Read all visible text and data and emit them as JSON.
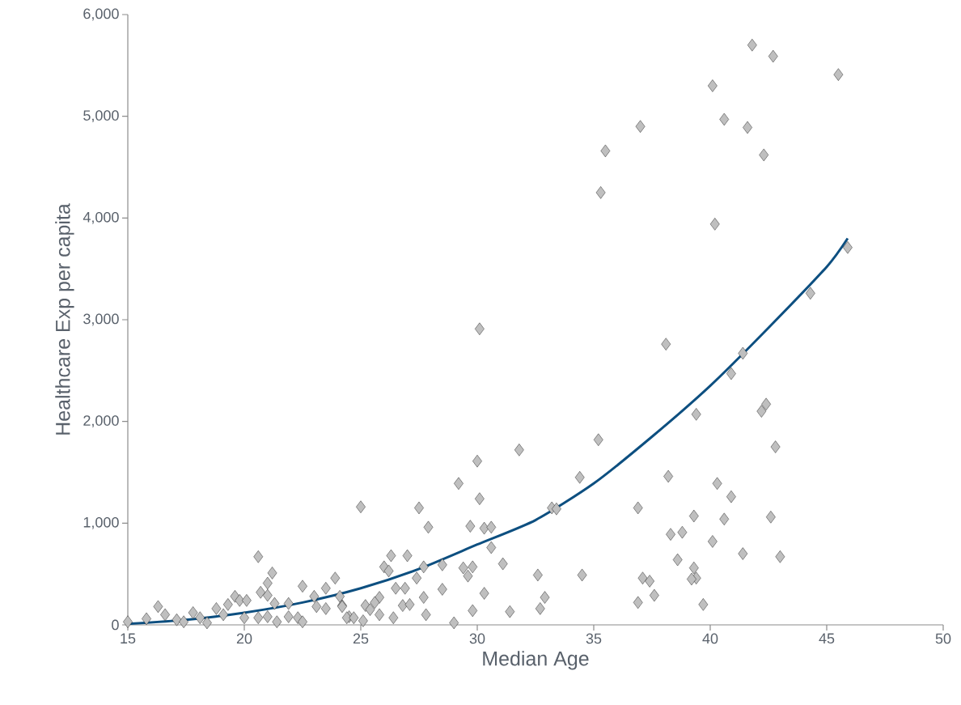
{
  "chart_data": {
    "type": "scatter",
    "xlabel": "Median Age",
    "ylabel": "Healthcare Exp per capita",
    "marker": "diamond",
    "xlim": [
      15,
      50
    ],
    "ylim": [
      0,
      6000
    ],
    "xticks": [
      15,
      20,
      25,
      30,
      35,
      40,
      45,
      50
    ],
    "yticks": [
      0,
      {
        "value": 1000,
        "label": "1,000"
      },
      {
        "value": 2000,
        "label": "2,000"
      },
      {
        "value": 3000,
        "label": "3,000"
      },
      {
        "value": 4000,
        "label": "4,000"
      },
      {
        "value": 5000,
        "label": "5,000"
      },
      {
        "value": 6000,
        "label": "6,000"
      }
    ],
    "series": [
      {
        "color": "#bfbfbf",
        "x": [
          35.3,
          35.5,
          37.0,
          40.1,
          40.6,
          41.6,
          41.8,
          42.3,
          42.7,
          45.5,
          45.9,
          40.2,
          44.3,
          38.1,
          41.4,
          40.9,
          42.4,
          42.2,
          39.4,
          42.8,
          35.2,
          34.4,
          38.2,
          40.3,
          40.9,
          36.9,
          39.3,
          40.6,
          42.6,
          38.3,
          38.8,
          40.1,
          41.4,
          43.0,
          38.6,
          34.5,
          37.1,
          37.4,
          39.3,
          39.4,
          39.2,
          37.6,
          36.9,
          39.7,
          30.1,
          31.8,
          30.0,
          29.2,
          30.1,
          25.0,
          27.5,
          33.2,
          33.4,
          27.9,
          29.7,
          30.3,
          30.6,
          30.6,
          27.0,
          26.3,
          26.0,
          26.2,
          27.7,
          28.5,
          29.4,
          29.8,
          29.6,
          31.1,
          32.6,
          27.4,
          26.5,
          26.9,
          28.5,
          27.7,
          30.3,
          32.9,
          25.8,
          25.6,
          25.2,
          25.4,
          26.8,
          27.1,
          24.2,
          24.5,
          25.1,
          25.8,
          26.4,
          27.8,
          29.0,
          29.8,
          31.4,
          32.7,
          15.0,
          15.8,
          16.3,
          16.6,
          17.1,
          17.4,
          17.8,
          18.1,
          18.4,
          18.8,
          19.1,
          19.3,
          19.6,
          19.8,
          20.0,
          20.1,
          20.6,
          21.2,
          21.0,
          20.7,
          21.0,
          20.6,
          21.0,
          21.3,
          21.4,
          21.9,
          21.9,
          22.3,
          22.5,
          22.5,
          23.0,
          23.1,
          23.5,
          23.5,
          23.9,
          24.1,
          24.2,
          24.4,
          24.7
        ],
        "values": [
          4250,
          4660,
          4900,
          5300,
          4970,
          4890,
          5700,
          4620,
          5590,
          5410,
          3710,
          3940,
          3260,
          2760,
          2670,
          2470,
          2170,
          2100,
          2070,
          1750,
          1820,
          1450,
          1460,
          1390,
          1260,
          1150,
          1070,
          1040,
          1060,
          890,
          910,
          820,
          700,
          670,
          640,
          490,
          460,
          430,
          560,
          460,
          450,
          290,
          220,
          200,
          2910,
          1720,
          1610,
          1390,
          1240,
          1160,
          1150,
          1150,
          1140,
          960,
          970,
          950,
          960,
          760,
          680,
          680,
          570,
          530,
          570,
          590,
          560,
          570,
          480,
          600,
          490,
          460,
          360,
          360,
          350,
          270,
          310,
          270,
          270,
          220,
          190,
          150,
          190,
          200,
          190,
          80,
          40,
          100,
          70,
          100,
          20,
          140,
          130,
          160,
          30,
          60,
          180,
          100,
          50,
          30,
          120,
          70,
          20,
          160,
          100,
          200,
          280,
          240,
          70,
          240,
          670,
          510,
          410,
          320,
          290,
          70,
          80,
          210,
          30,
          210,
          80,
          70,
          380,
          30,
          280,
          180,
          360,
          160,
          460,
          280,
          180,
          70,
          70
        ]
      },
      {
        "type": "line",
        "color": "#0d4f80",
        "marker": "none",
        "x": [
          15,
          17.5,
          20,
          22.5,
          25,
          27.5,
          30,
          32.5,
          35,
          37.5,
          40,
          42.5,
          45,
          45.9
        ],
        "values": [
          10,
          50,
          120,
          220,
          360,
          550,
          790,
          1030,
          1390,
          1850,
          2350,
          2920,
          3520,
          3800
        ]
      }
    ]
  }
}
